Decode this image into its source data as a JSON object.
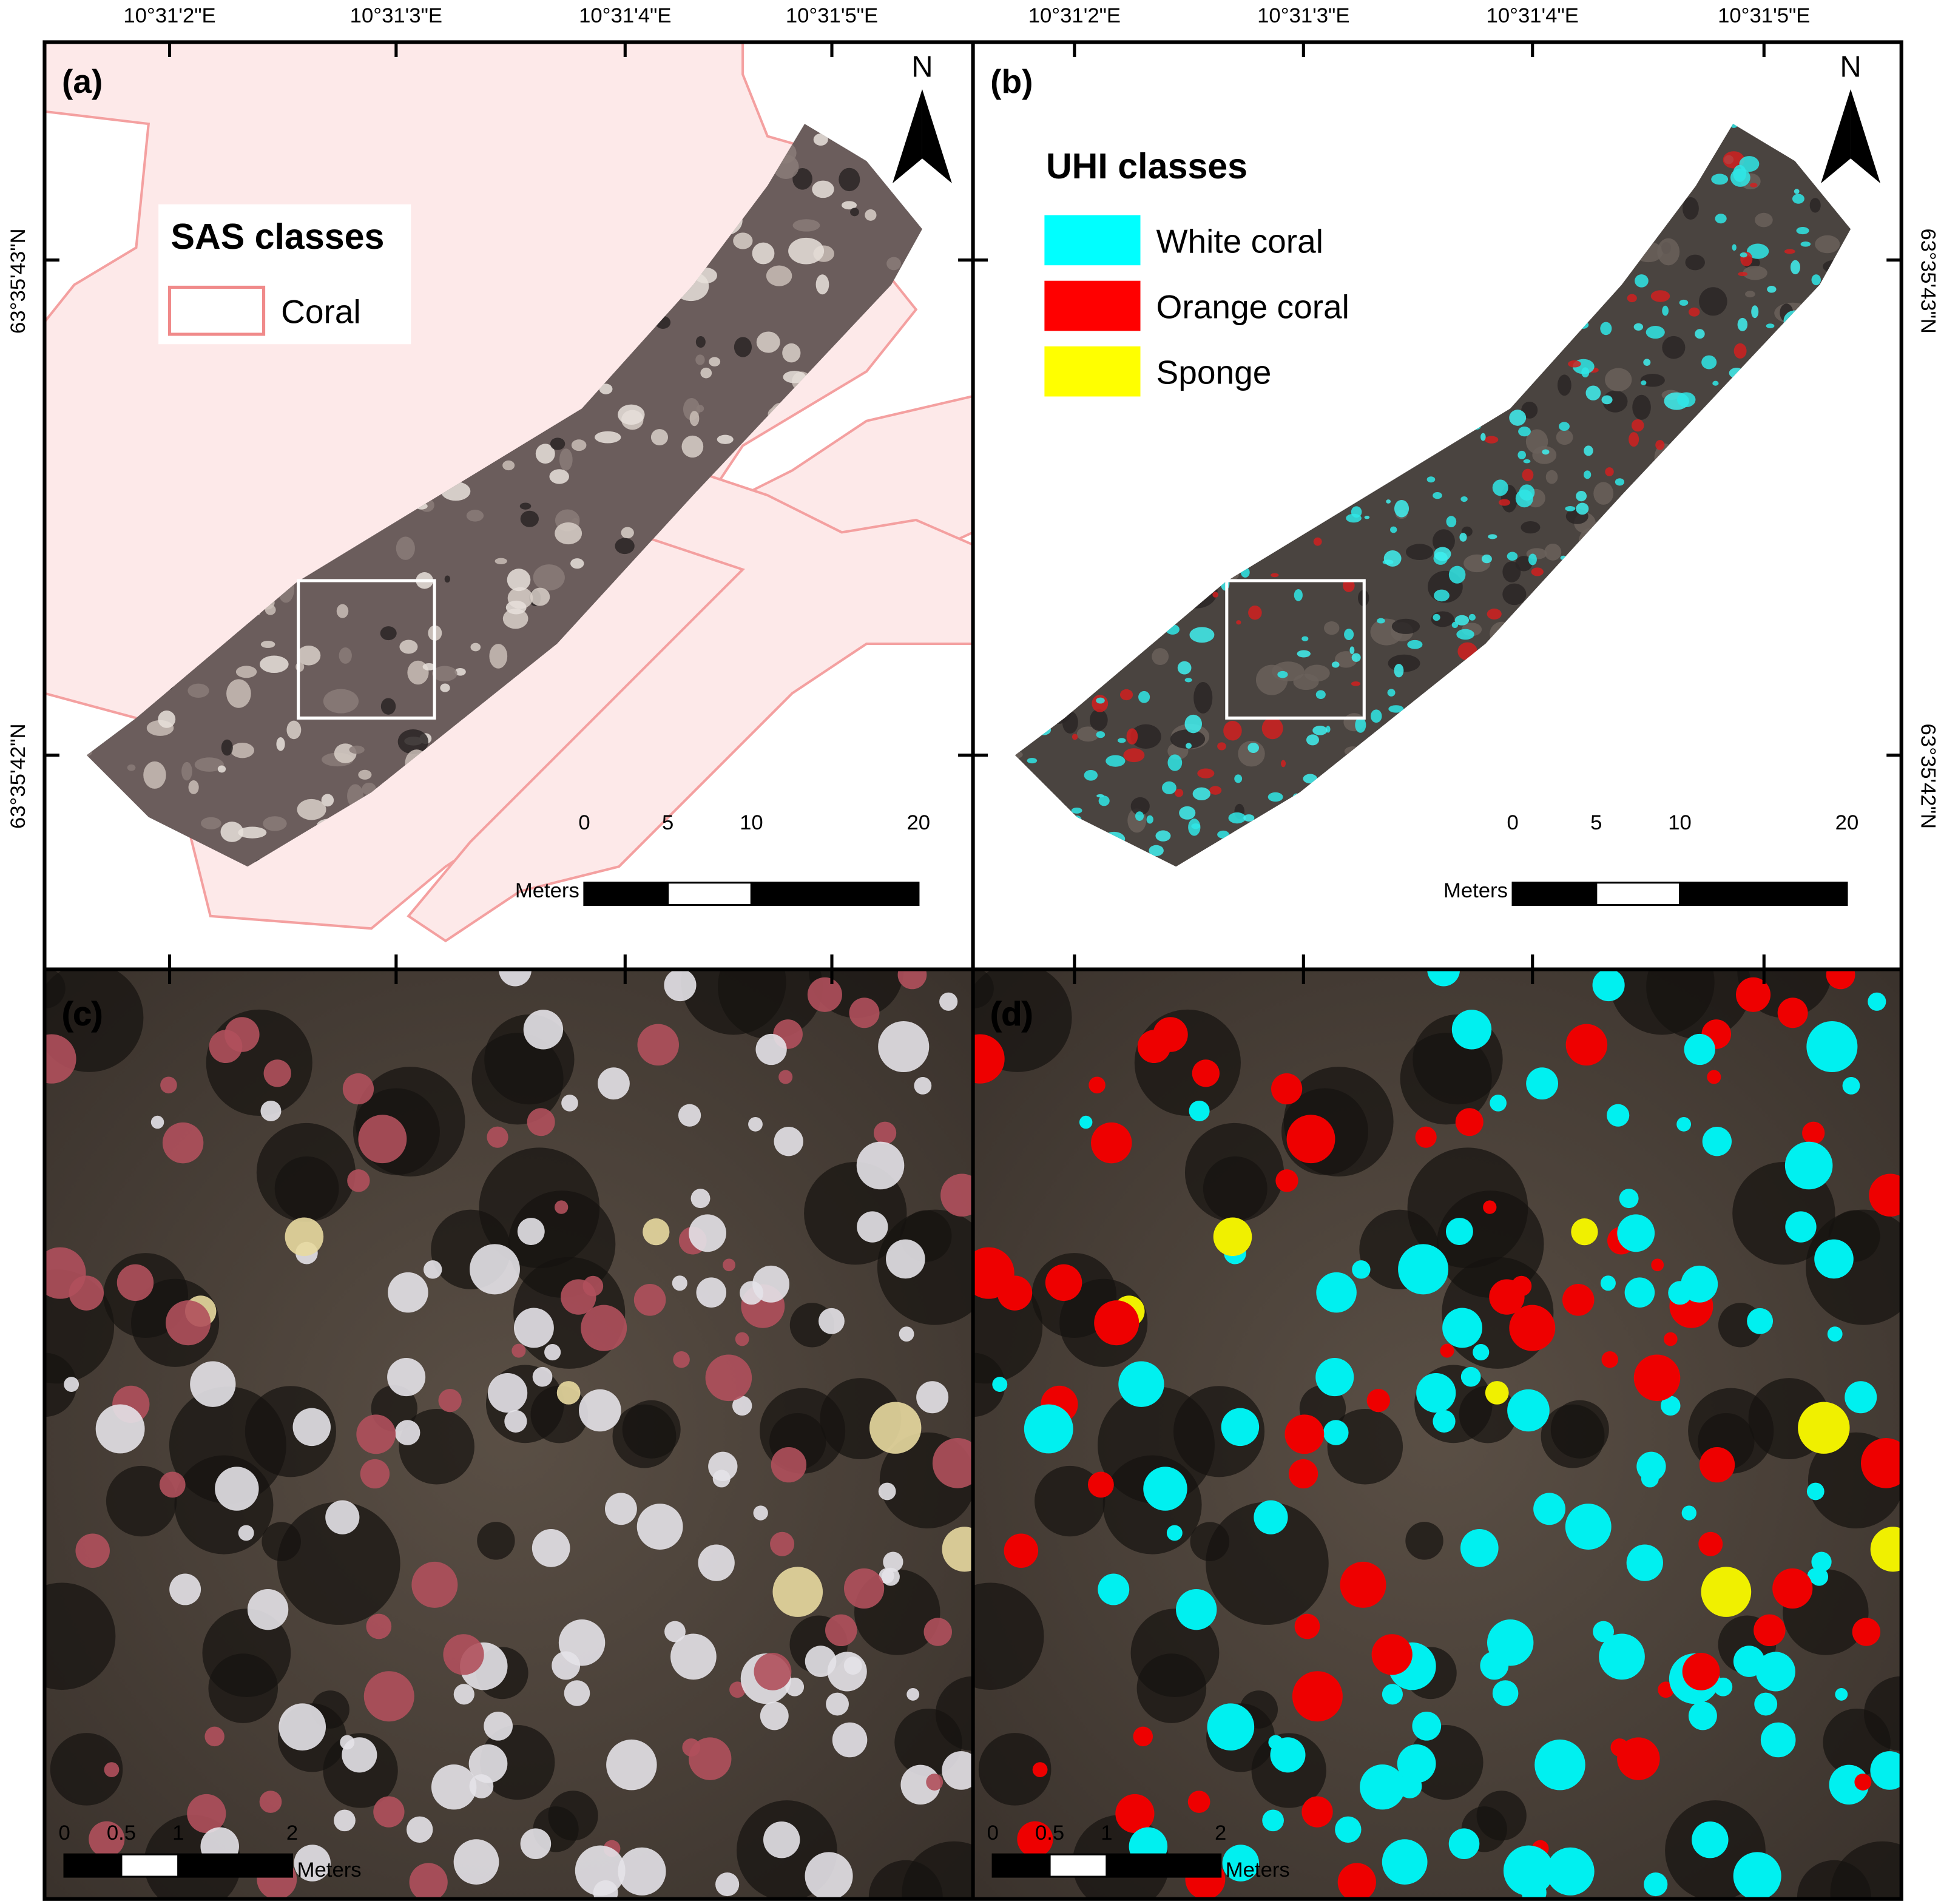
{
  "longitude_labels": [
    "10°31'2\"E",
    "10°31'3\"E",
    "10°31'4\"E",
    "10°31'5\"E"
  ],
  "latitude_labels": [
    "63°35'43\"N",
    "63°35'42\"N"
  ],
  "panels": [
    {
      "label": "(a)",
      "north": "N",
      "legend": {
        "title": "SAS classes",
        "items": [
          {
            "name": "Coral",
            "color": "#f08a8a"
          }
        ]
      },
      "scale": {
        "ticks": [
          0,
          5,
          10,
          20
        ],
        "unit": "Meters"
      }
    },
    {
      "label": "(b)",
      "north": "N",
      "legend": {
        "title": "UHI classes",
        "items": [
          {
            "name": "White coral",
            "color": "#00ffff"
          },
          {
            "name": "Orange coral",
            "color": "#ff0000"
          },
          {
            "name": "Sponge",
            "color": "#ffff00"
          }
        ]
      },
      "scale": {
        "ticks": [
          0,
          5,
          10,
          20
        ],
        "unit": "Meters"
      }
    },
    {
      "label": "(c)",
      "scale": {
        "ticks": [
          0,
          0.5,
          1,
          2
        ],
        "unit": "Meters"
      }
    },
    {
      "label": "(d)",
      "scale": {
        "ticks": [
          0,
          0.5,
          1,
          2
        ],
        "unit": "Meters"
      }
    }
  ]
}
